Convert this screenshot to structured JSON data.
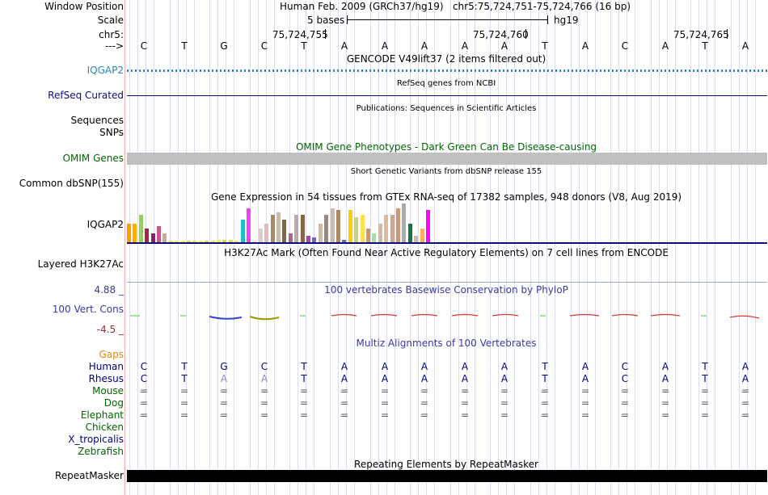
{
  "position": {
    "window_label": "Window Position",
    "window_value": "Human Feb. 2009 (GRCh37/hg19)   chr5:75,724,751-75,724,766 (16 bp)",
    "scale_label": "Scale",
    "scale_text": "5 bases",
    "scale_db": "hg19",
    "chrom_label": "chr5:",
    "strand_label": "--->",
    "ticks": [
      "75,724,755",
      "75,724,760",
      "75,724,765"
    ]
  },
  "sequence": [
    "C",
    "T",
    "G",
    "C",
    "T",
    "A",
    "A",
    "A",
    "A",
    "A",
    "T",
    "A",
    "C",
    "A",
    "T",
    "A"
  ],
  "tracks": {
    "gencode_title": "GENCODE V49lift37 (2 items filtered out)",
    "iqgap2_label": "IQGAP2",
    "refseq_title": "RefSeq genes from NCBI",
    "refseq_label": "RefSeq Curated",
    "pubs_title": "Publications: Sequences in Scientific Articles",
    "sequences_label": "Sequences",
    "snps_label": "SNPs",
    "omim_title": "OMIM Gene Phenotypes - Dark Green Can Be Disease-causing",
    "omim_label": "OMIM Genes",
    "dbsnp_title": "Short Genetic Variants from dbSNP release 155",
    "dbsnp_label": "Common dbSNP(155)",
    "gtex_title": "Gene Expression in 54 tissues from GTEx RNA-seq of 17382 samples, 948 donors (V8, Aug 2019)",
    "gtex_label": "IQGAP2",
    "h3k27_title": "H3K27Ac Mark (Often Found Near Active Regulatory Elements) on 7 cell lines from ENCODE",
    "h3k27_label": "Layered H3K27Ac",
    "cons_title": "100 vertebrates Basewise Conservation by PhyloP",
    "cons_label": "100 Vert. Cons",
    "cons_max": "4.88 _",
    "cons_min": "-4.5 _",
    "multiz_title": "Multiz Alignments of 100 Vertebrates",
    "repeat_title": "Repeating Elements by RepeatMasker",
    "repeat_label": "RepeatMasker"
  },
  "gtex_values": [
    8,
    8,
    12,
    6,
    4,
    7,
    4,
    0.6,
    0.6,
    0.8,
    0.8,
    0.8,
    0.6,
    0.8,
    0.8,
    1,
    1.2,
    1,
    0.8,
    10,
    15,
    0.6,
    6,
    8,
    12,
    13,
    10,
    4,
    12,
    12,
    3,
    2,
    8,
    12,
    15,
    14,
    1,
    14,
    11,
    12,
    6,
    4,
    8,
    12,
    12,
    15,
    17,
    8,
    3,
    6,
    14
  ],
  "gtex_colors": [
    "#ff9900",
    "#ffaa00",
    "#99cc66",
    "#aa2244",
    "#882266",
    "#cc5588",
    "#ccaa88",
    "#eedd55",
    "#eeee66",
    "#eeee55",
    "#dddd55",
    "#ddee55",
    "#eeee66",
    "#dddd44",
    "#ddee66",
    "#eeee55",
    "#ccdd44",
    "#dddd55",
    "#eeee66",
    "#22bbcc",
    "#ee44ee",
    "#eedddd",
    "#ddcccc",
    "#ddbbbb",
    "#aa8866",
    "#ccbbaa",
    "#886644",
    "#aa6688",
    "#bbaaaa",
    "#886644",
    "#aa44aa",
    "#7766aa",
    "#ccbbaa",
    "#998877",
    "#ccbbaa",
    "#aa8866",
    "#6666cc",
    "#ffcc00",
    "#cccc88",
    "#ffdd55",
    "#cc9966",
    "#aaddaa",
    "#ccbbaa",
    "#ddbb99",
    "#ccaa88",
    "#cc9977",
    "#aaaaaa",
    "#117744",
    "#ccbbaa",
    "#ffaa66",
    "#ff00ff"
  ],
  "multiz": {
    "gaps_label": "Gaps",
    "species": [
      {
        "name": "Human",
        "color": "#000080",
        "row": "CTGCTAAAAATACATA"
      },
      {
        "name": "Rhesus",
        "color": "#000080",
        "row": "CTAATAAAAATACATA"
      },
      {
        "name": "Mouse",
        "color": "#006600",
        "row": "================"
      },
      {
        "name": "Dog",
        "color": "#006600",
        "row": "================"
      },
      {
        "name": "Elephant",
        "color": "#006600",
        "row": "================"
      },
      {
        "name": "Chicken",
        "color": "#006600",
        "row": ""
      },
      {
        "name": "X_tropicalis",
        "color": "#000080",
        "row": ""
      },
      {
        "name": "Zebrafish",
        "color": "#006600",
        "row": ""
      }
    ]
  }
}
